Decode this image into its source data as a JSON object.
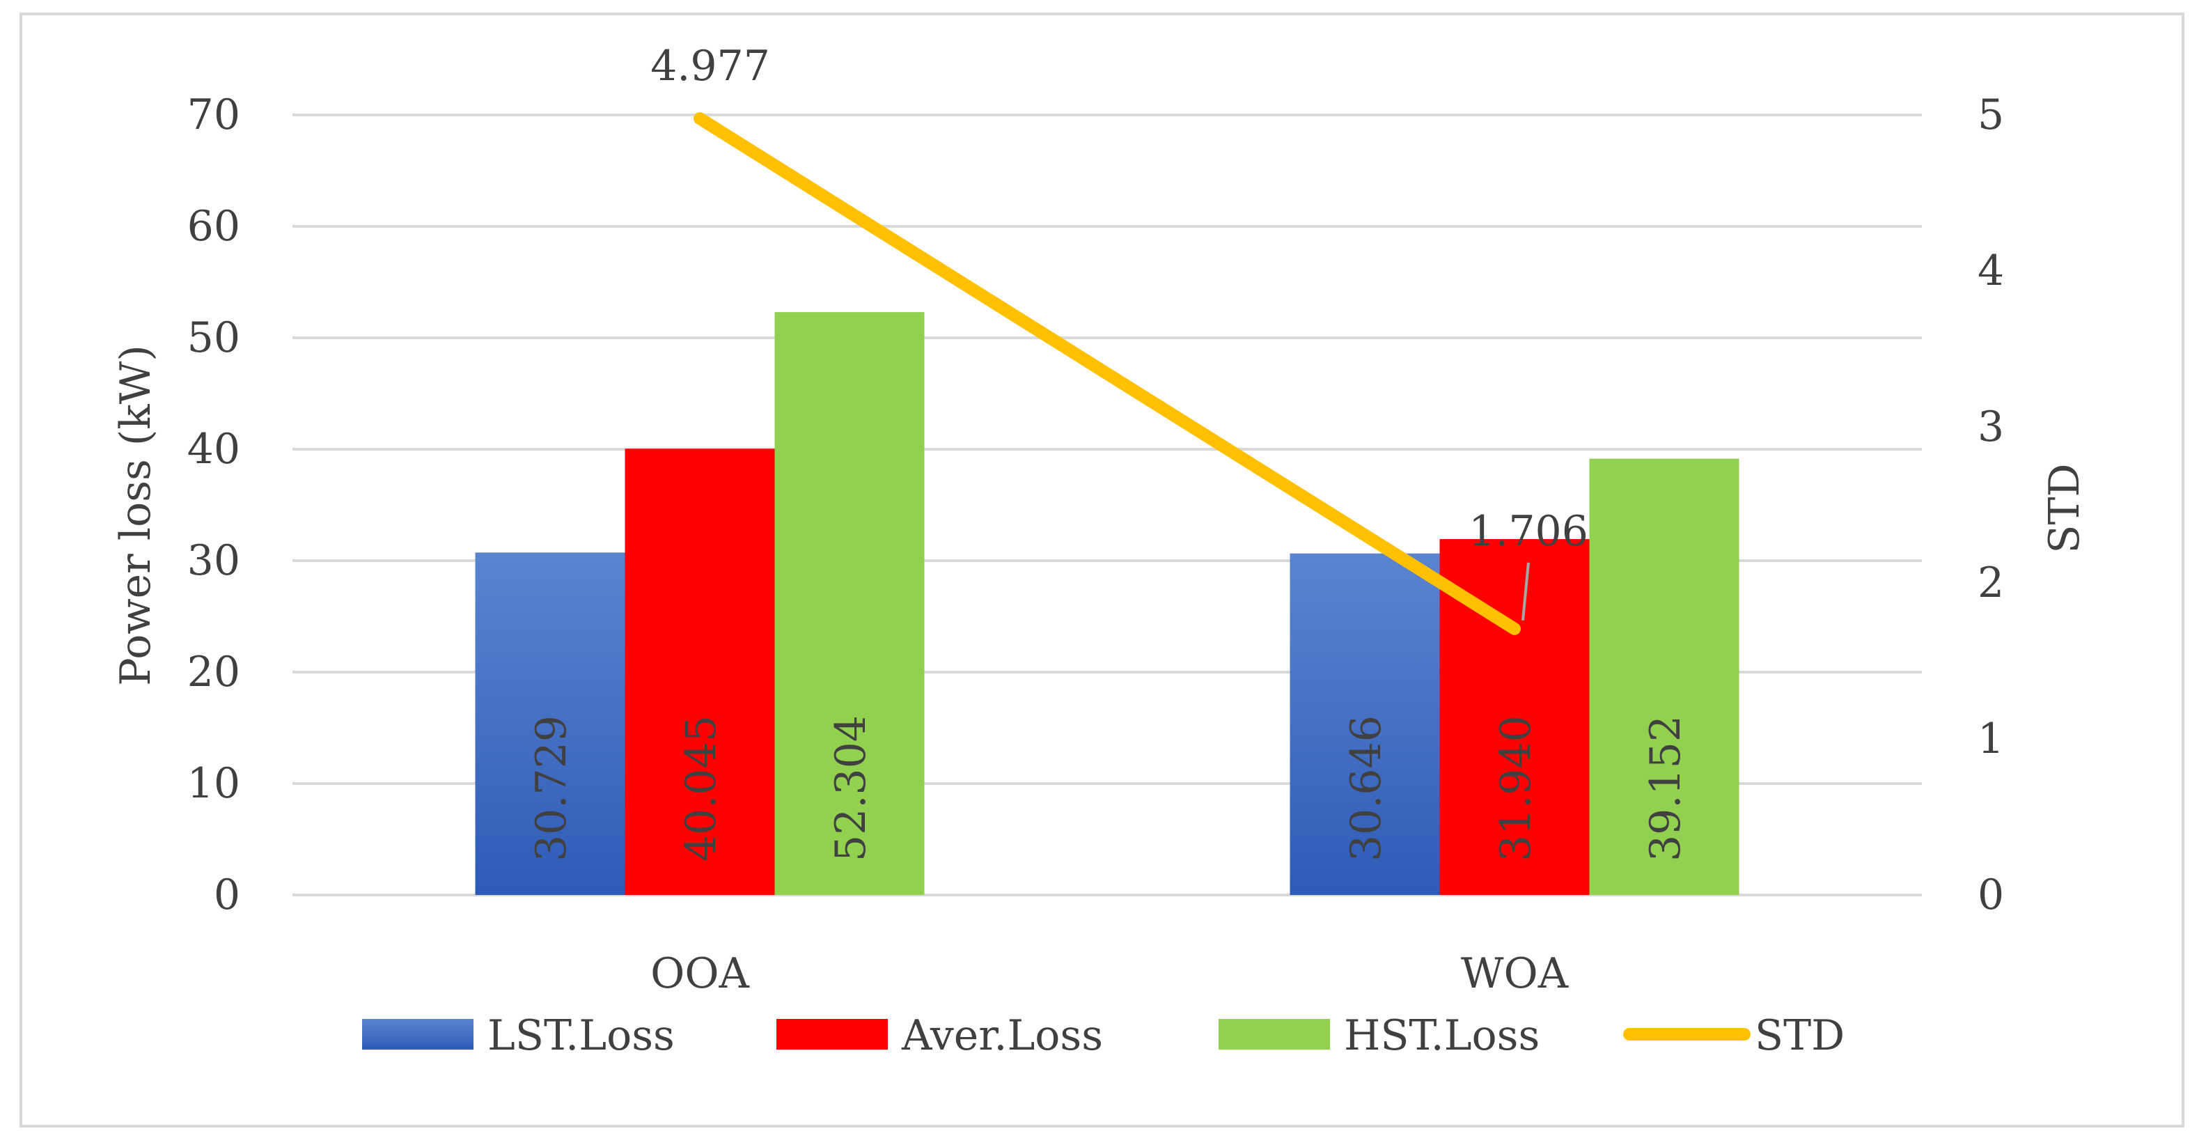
{
  "chart_data": {
    "type": "bar",
    "categories": [
      "OOA",
      "WOA"
    ],
    "series": [
      {
        "name": "LST.Loss",
        "values": [
          30.729,
          30.646
        ],
        "labels": [
          "30.729",
          "30.646"
        ]
      },
      {
        "name": "Aver.Loss",
        "values": [
          40.045,
          31.94
        ],
        "labels": [
          "40.045",
          "31.940"
        ]
      },
      {
        "name": "HST.Loss",
        "values": [
          52.304,
          39.152
        ],
        "labels": [
          "52.304",
          "39.152"
        ]
      }
    ],
    "line_series": {
      "name": "STD",
      "values": [
        4.977,
        1.706
      ],
      "labels": [
        "4.977",
        "1.706"
      ],
      "axis": "secondary"
    },
    "ylabel": "Power loss (kW)",
    "y2label": "STD",
    "ylim": [
      0,
      70
    ],
    "y2lim": [
      0,
      5
    ],
    "yticks": [
      "0",
      "10",
      "20",
      "30",
      "40",
      "50",
      "60",
      "70"
    ],
    "y2ticks": [
      "0",
      "1",
      "2",
      "3",
      "4",
      "5"
    ],
    "legend_position": "bottom",
    "grid": true,
    "colors": {
      "LST.Loss": "#4472C4",
      "LST.Loss_dark": "#2E5BB8",
      "Aver.Loss": "#FF0000",
      "HST.Loss": "#92D050",
      "STD": "#FFC000",
      "grid": "#D9D9D9",
      "text": "#404040"
    }
  }
}
